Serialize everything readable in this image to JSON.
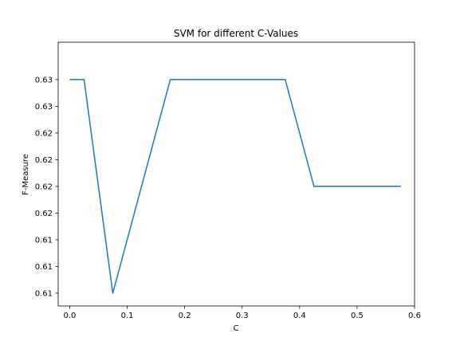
{
  "chart_data": {
    "type": "line",
    "title": "SVM for different C-Values",
    "xlabel": "C",
    "ylabel": "F-Measure",
    "xlim": [
      -0.02,
      0.6
    ],
    "ylim": [
      0.6088,
      0.6335
    ],
    "x_ticks": [
      {
        "value": 0.0,
        "label": "0.0"
      },
      {
        "value": 0.1,
        "label": "0.1"
      },
      {
        "value": 0.2,
        "label": "0.2"
      },
      {
        "value": 0.3,
        "label": "0.3"
      },
      {
        "value": 0.4,
        "label": "0.4"
      },
      {
        "value": 0.5,
        "label": "0.5"
      },
      {
        "value": 0.6,
        "label": "0.6"
      }
    ],
    "y_ticks": [
      {
        "value": 0.61,
        "label": "0.61"
      },
      {
        "value": 0.6125,
        "label": "0.61"
      },
      {
        "value": 0.615,
        "label": "0.61"
      },
      {
        "value": 0.6175,
        "label": "0.62"
      },
      {
        "value": 0.62,
        "label": "0.62"
      },
      {
        "value": 0.6225,
        "label": "0.62"
      },
      {
        "value": 0.625,
        "label": "0.62"
      },
      {
        "value": 0.6275,
        "label": "0.63"
      },
      {
        "value": 0.63,
        "label": "0.63"
      }
    ],
    "grid": false,
    "series": [
      {
        "color": "#1f77b4",
        "points": [
          {
            "x": 0.001,
            "y": 0.63
          },
          {
            "x": 0.025,
            "y": 0.63
          },
          {
            "x": 0.075,
            "y": 0.61
          },
          {
            "x": 0.175,
            "y": 0.63
          },
          {
            "x": 0.225,
            "y": 0.63
          },
          {
            "x": 0.275,
            "y": 0.63
          },
          {
            "x": 0.325,
            "y": 0.63
          },
          {
            "x": 0.375,
            "y": 0.63
          },
          {
            "x": 0.425,
            "y": 0.62
          },
          {
            "x": 0.475,
            "y": 0.62
          },
          {
            "x": 0.525,
            "y": 0.62
          },
          {
            "x": 0.575,
            "y": 0.62
          }
        ]
      }
    ]
  }
}
